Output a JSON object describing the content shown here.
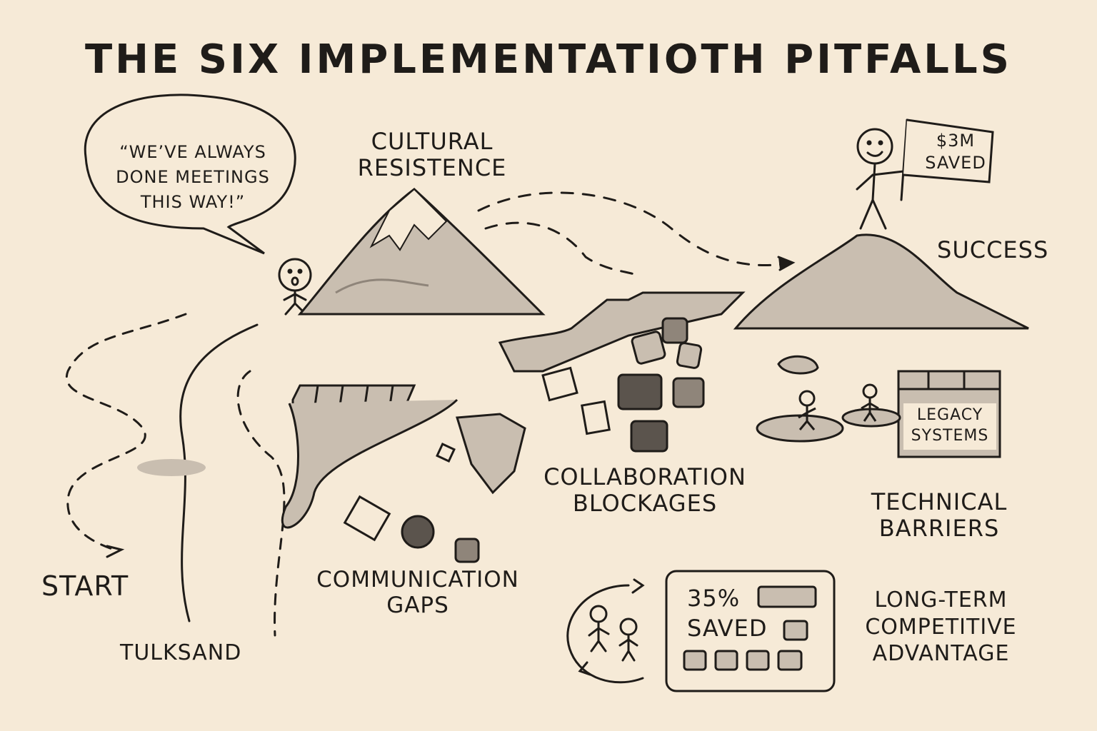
{
  "title": "THE SIX IMPLEMENTATIOTH PITFALLS",
  "speech_bubble": [
    "“WE’VE ALWAYS",
    "DONE MEETINGS",
    "THIS WAY!”"
  ],
  "labels": {
    "cultural_resistance": [
      "CULTURAL",
      "RESISTENCE"
    ],
    "success": "SUCCESS",
    "flag": [
      "$3M",
      "SAVED"
    ],
    "start": "START",
    "quicksand": "TULKSAND",
    "communication_gaps": [
      "COMMUNICATION",
      "GAPS"
    ],
    "collaboration_blockages": [
      "COLLABORATION",
      "BLOCKAGES"
    ],
    "legacy_systems": [
      "LEGACY",
      "SYSTEMS"
    ],
    "technical_barriers": [
      "TECHNICAL",
      "BARRIERS"
    ],
    "calculator": [
      "35%",
      "SAVED"
    ],
    "long_term": [
      "LONG-TERM",
      "COMPETITIVE",
      "ADVANTAGE"
    ]
  },
  "colors": {
    "background": "#f6ead7",
    "ink": "#1f1c19",
    "shade": "#c9beb0",
    "shade_dark": "#8f857a"
  }
}
